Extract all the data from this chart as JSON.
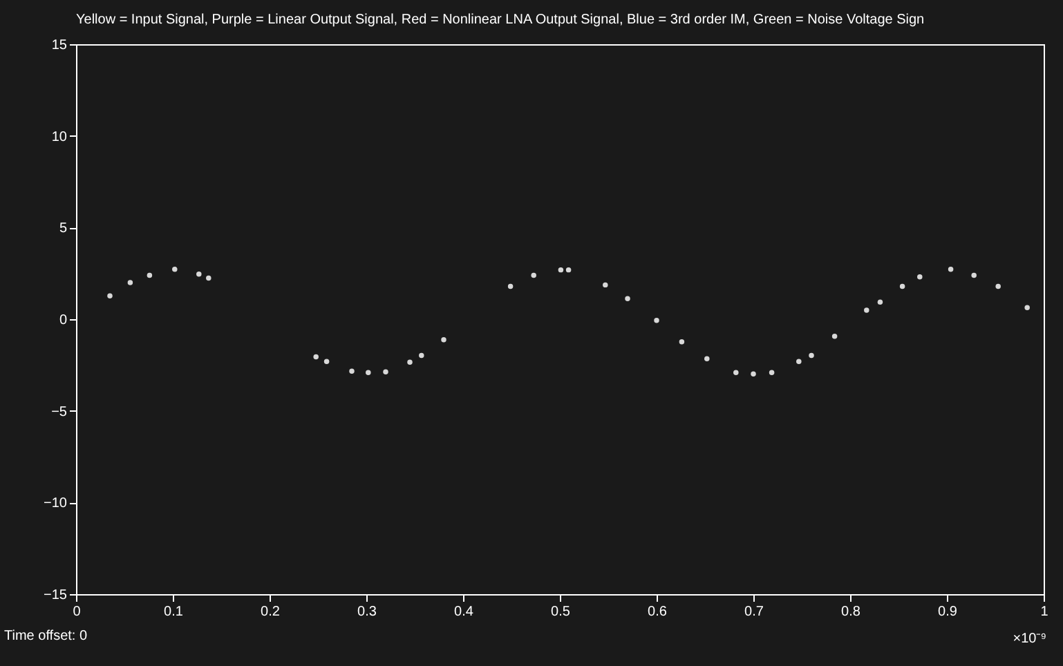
{
  "chart_data": {
    "type": "scatter",
    "title": "Yellow = Input Signal, Purple = Linear Output Signal, Red = Nonlinear LNA Output Signal, Blue = 3rd order IM, Green = Noise Voltage Sign",
    "x": [
      0.035,
      0.056,
      0.076,
      0.102,
      0.127,
      0.137,
      0.248,
      0.259,
      0.285,
      0.302,
      0.32,
      0.345,
      0.357,
      0.38,
      0.449,
      0.473,
      0.501,
      0.509,
      0.547,
      0.57,
      0.6,
      0.626,
      0.652,
      0.682,
      0.7,
      0.719,
      0.747,
      0.76,
      0.784,
      0.817,
      0.831,
      0.854,
      0.872,
      0.904,
      0.928,
      0.953,
      0.983
    ],
    "series": [
      {
        "color": "#d8d8d8",
        "values": [
          1.27,
          2.0,
          2.39,
          2.72,
          2.46,
          2.24,
          -2.05,
          -2.31,
          -2.84,
          -2.91,
          -2.87,
          -2.35,
          -1.98,
          -1.12,
          1.79,
          2.39,
          2.69,
          2.69,
          1.87,
          1.12,
          -0.07,
          -1.23,
          -2.16,
          -2.91,
          -2.99,
          -2.91,
          -2.31,
          -1.98,
          -0.93,
          0.49,
          0.93,
          1.79,
          2.31,
          2.72,
          2.39,
          1.79,
          0.63
        ]
      }
    ],
    "xlim": [
      0,
      1
    ],
    "xticks": [
      0,
      0.1,
      0.2,
      0.3,
      0.4,
      0.5,
      0.6,
      0.7,
      0.8,
      0.9,
      1
    ],
    "ylim": [
      -15,
      15
    ],
    "yticks": [
      -15,
      -10,
      -5,
      0,
      5,
      10,
      15
    ],
    "annotations": [
      "Time offset:  0",
      "×10⁻⁹"
    ],
    "marker": "circle",
    "grid": false,
    "legend": false
  }
}
